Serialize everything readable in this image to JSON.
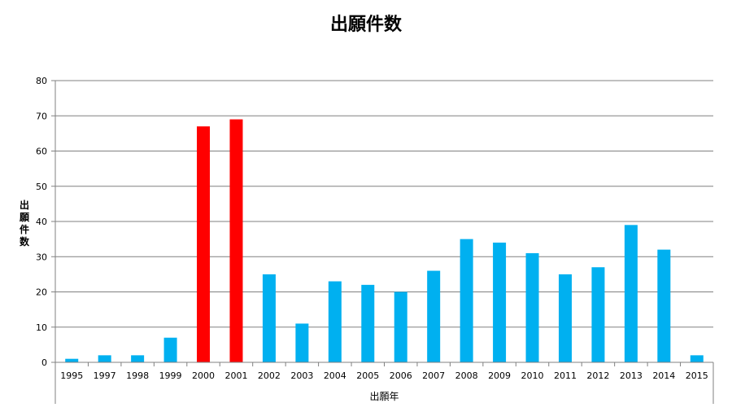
{
  "chart_data": {
    "type": "bar",
    "title": "出願件数",
    "xlabel": "出願年",
    "ylabel": "出願件数",
    "ylim": [
      0,
      80
    ],
    "yticks": [
      0,
      10,
      20,
      30,
      40,
      50,
      60,
      70,
      80
    ],
    "grid": true,
    "categories": [
      "1995",
      "1997",
      "1998",
      "1999",
      "2000",
      "2001",
      "2002",
      "2003",
      "2004",
      "2005",
      "2006",
      "2007",
      "2008",
      "2009",
      "2010",
      "2011",
      "2012",
      "2013",
      "2014",
      "2015"
    ],
    "values": [
      1,
      2,
      2,
      7,
      67,
      69,
      25,
      11,
      23,
      22,
      20,
      26,
      35,
      34,
      31,
      25,
      27,
      39,
      32,
      2
    ],
    "colors": {
      "default": "#00b0f0",
      "highlight": "#ff0000"
    },
    "highlighted": [
      "2000",
      "2001"
    ]
  }
}
